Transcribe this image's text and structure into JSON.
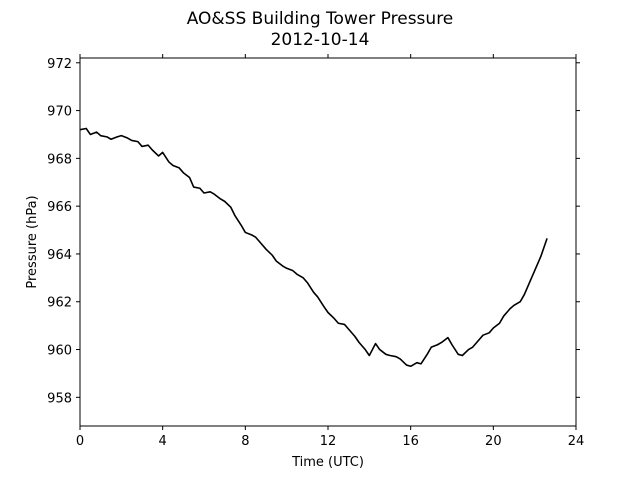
{
  "chart_data": {
    "type": "line",
    "title": "AO&SS Building Tower Pressure",
    "subtitle": "2012-10-14",
    "xlabel": "Time (UTC)",
    "ylabel": "Pressure (hPa)",
    "xlim": [
      0,
      24
    ],
    "ylim": [
      956.8,
      972.2
    ],
    "xticks": [
      0,
      4,
      8,
      12,
      16,
      20,
      24
    ],
    "yticks": [
      958,
      960,
      962,
      964,
      966,
      968,
      970,
      972
    ],
    "grid": false,
    "legend": "none",
    "line_color": "#000000",
    "series": [
      {
        "x": [
          0.0,
          0.3,
          0.5,
          0.8,
          1.0,
          1.3,
          1.5,
          1.8,
          2.0,
          2.3,
          2.5,
          2.8,
          3.0,
          3.3,
          3.5,
          3.8,
          4.0,
          4.3,
          4.5,
          4.8,
          5.0,
          5.3,
          5.5,
          5.8,
          6.0,
          6.3,
          6.5,
          6.8,
          7.0,
          7.3,
          7.5,
          7.8,
          8.0,
          8.3,
          8.5,
          8.8,
          9.0,
          9.3,
          9.5,
          9.8,
          10.0,
          10.3,
          10.5,
          10.8,
          11.0,
          11.3,
          11.5,
          11.8,
          12.0,
          12.3,
          12.5,
          12.8,
          13.0,
          13.3,
          13.5,
          13.8,
          14.0,
          14.3,
          14.5,
          14.8,
          15.0,
          15.3,
          15.5,
          15.8,
          16.0,
          16.3,
          16.5,
          16.8,
          17.0,
          17.3,
          17.5,
          17.8,
          18.0,
          18.3,
          18.5,
          18.8,
          19.0,
          19.3,
          19.5,
          19.8,
          20.0,
          20.3,
          20.5,
          20.8,
          21.0,
          21.3,
          21.5,
          21.8,
          22.0,
          22.3,
          22.6
        ],
        "y": [
          969.2,
          969.25,
          969.0,
          969.1,
          968.95,
          968.9,
          968.8,
          968.9,
          968.95,
          968.85,
          968.75,
          968.7,
          968.5,
          968.55,
          968.35,
          968.1,
          968.25,
          967.85,
          967.7,
          967.6,
          967.4,
          967.2,
          966.8,
          966.75,
          966.55,
          966.6,
          966.5,
          966.3,
          966.2,
          965.95,
          965.6,
          965.2,
          964.9,
          964.8,
          964.7,
          964.4,
          964.2,
          963.95,
          963.7,
          963.5,
          963.4,
          963.3,
          963.15,
          963.0,
          962.8,
          962.4,
          962.2,
          961.8,
          961.55,
          961.3,
          961.1,
          961.05,
          960.85,
          960.55,
          960.3,
          960.0,
          959.75,
          960.25,
          960.0,
          959.8,
          959.75,
          959.7,
          959.6,
          959.35,
          959.3,
          959.45,
          959.4,
          959.8,
          960.1,
          960.2,
          960.3,
          960.5,
          960.2,
          959.8,
          959.75,
          960.0,
          960.1,
          960.4,
          960.6,
          960.7,
          960.9,
          961.1,
          961.4,
          961.7,
          961.85,
          962.0,
          962.3,
          962.9,
          963.3,
          963.9,
          964.65
        ]
      }
    ]
  }
}
